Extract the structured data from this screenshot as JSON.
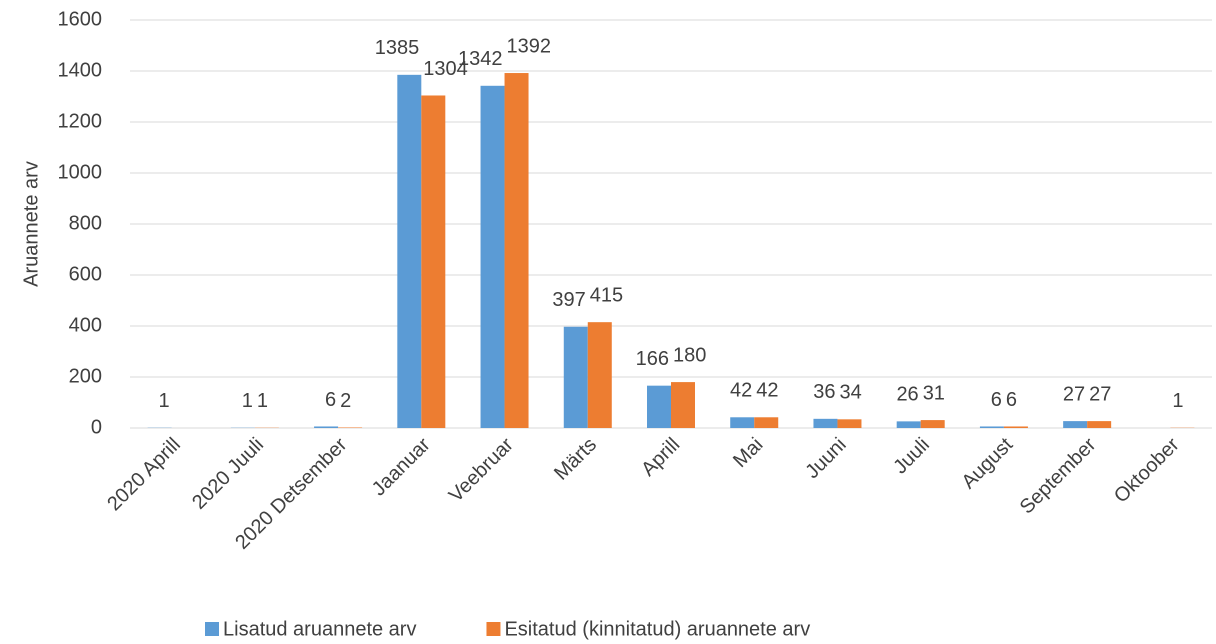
{
  "chart_data": {
    "type": "bar",
    "y_label": "Aruannete arv",
    "categories": [
      "2020 Aprill",
      "2020 Juuli",
      "2020 Detsember",
      "Jaanuar",
      "Veebruar",
      "Märts",
      "Aprill",
      "Mai",
      "Juuni",
      "Juuli",
      "August",
      "September",
      "Oktoober"
    ],
    "series": [
      {
        "name": "Lisatud aruannete arv",
        "color": "#5b9bd5",
        "values": [
          1,
          1,
          6,
          1385,
          1342,
          397,
          166,
          42,
          36,
          26,
          6,
          27,
          null
        ]
      },
      {
        "name": "Esitatud (kinnitatud) aruannete arv",
        "color": "#ed7d31",
        "values": [
          null,
          1,
          2,
          1304,
          1392,
          415,
          180,
          42,
          34,
          31,
          6,
          27,
          1
        ]
      }
    ],
    "ylim": [
      0,
      1600
    ],
    "yticks": [
      0,
      200,
      400,
      600,
      800,
      1000,
      1200,
      1400,
      1600
    ],
    "grid": true,
    "legend": "bottom"
  }
}
